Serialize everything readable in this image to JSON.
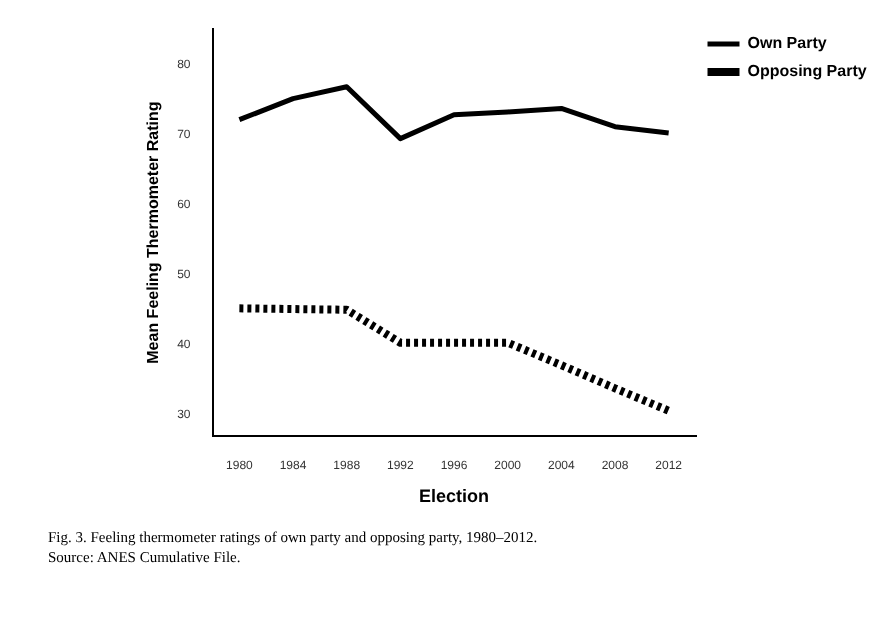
{
  "chart_data": {
    "type": "line",
    "xlabel": "Election",
    "ylabel": "Mean Feeling Thermometer Rating",
    "categories": [
      "1980",
      "1984",
      "1988",
      "1992",
      "1996",
      "2000",
      "2004",
      "2008",
      "2012"
    ],
    "series": [
      {
        "name": "Own Party",
        "color": "#000000",
        "line_style": "solid",
        "values": [
          72.1,
          75.1,
          76.8,
          69.4,
          72.8,
          73.2,
          73.7,
          71.1,
          70.2
        ]
      },
      {
        "name": "Opposing Party",
        "color": "#000000",
        "line_style": "dotted",
        "values": [
          45.2,
          45.1,
          45.0,
          40.3,
          40.3,
          40.3,
          37.1,
          33.8,
          30.6
        ]
      }
    ],
    "ylim": [
      27,
      85
    ],
    "yticks": [
      30,
      40,
      50,
      60,
      70,
      80
    ],
    "grid": false,
    "legend": "top right",
    "marker": "none",
    "annotations": [
      "Fig. 3. Feeling thermometer ratings of own party and opposing party, 1980–2012.",
      "Source: ANES Cumulative File."
    ]
  }
}
